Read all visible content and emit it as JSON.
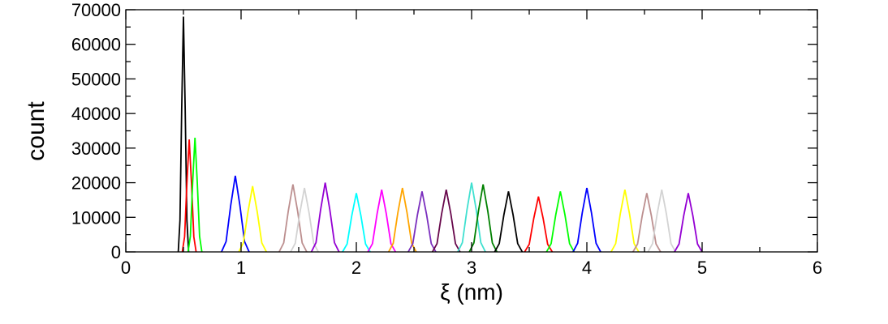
{
  "chart_data": {
    "type": "line",
    "xlabel": "ξ (nm)",
    "ylabel": "count",
    "xlim": [
      0,
      6
    ],
    "xticks": [
      0,
      1,
      2,
      3,
      4,
      5,
      6
    ],
    "xminorticks": [
      0.5,
      1.5,
      2.5,
      3.5,
      4.5,
      5.5
    ],
    "ylim": [
      0,
      70000
    ],
    "yticks": [
      0,
      10000,
      20000,
      30000,
      40000,
      50000,
      60000,
      70000
    ],
    "yminorticks": [
      5000,
      15000,
      25000,
      35000,
      45000,
      55000,
      65000
    ],
    "series": [
      {
        "color": "#000000",
        "x": [
          0.455,
          0.47,
          0.485,
          0.5,
          0.515,
          0.53,
          0.545
        ],
        "values": [
          0,
          9200,
          41500,
          68000,
          41500,
          9200,
          0
        ]
      },
      {
        "color": "#ff0000",
        "x": [
          0.49,
          0.51,
          0.53,
          0.55,
          0.57,
          0.59,
          0.61
        ],
        "values": [
          0,
          4400,
          19800,
          32500,
          19800,
          4400,
          0
        ]
      },
      {
        "color": "#00ff00",
        "x": [
          0.54,
          0.56,
          0.58,
          0.6,
          0.62,
          0.64,
          0.66
        ],
        "values": [
          0,
          4500,
          20100,
          33000,
          20100,
          4500,
          0
        ]
      },
      {
        "color": "#0000ff",
        "x": [
          0.83,
          0.87,
          0.91,
          0.95,
          0.99,
          1.03,
          1.07
        ],
        "values": [
          0,
          3000,
          13400,
          22000,
          13400,
          3000,
          0
        ]
      },
      {
        "color": "#ffff00",
        "x": [
          0.98,
          1.02,
          1.06,
          1.1,
          1.14,
          1.18,
          1.22
        ],
        "values": [
          0,
          2600,
          11600,
          19000,
          11600,
          2600,
          0
        ]
      },
      {
        "color": "#bc8f8f",
        "x": [
          1.33,
          1.37,
          1.41,
          1.45,
          1.49,
          1.53,
          1.57
        ],
        "values": [
          0,
          2600,
          11900,
          19500,
          11900,
          2600,
          0
        ]
      },
      {
        "color": "#d3d3d3",
        "x": [
          1.43,
          1.47,
          1.51,
          1.55,
          1.59,
          1.63,
          1.67
        ],
        "values": [
          0,
          2500,
          11300,
          18500,
          11300,
          2500,
          0
        ]
      },
      {
        "color": "#9400d3",
        "x": [
          1.61,
          1.65,
          1.69,
          1.73,
          1.77,
          1.81,
          1.85
        ],
        "values": [
          0,
          2700,
          12200,
          20000,
          12200,
          2700,
          0
        ]
      },
      {
        "color": "#00ffff",
        "x": [
          1.88,
          1.92,
          1.96,
          2.0,
          2.04,
          2.08,
          2.12
        ],
        "values": [
          0,
          2300,
          10400,
          17000,
          10400,
          2300,
          0
        ]
      },
      {
        "color": "#ff00ff",
        "x": [
          2.1,
          2.14,
          2.18,
          2.22,
          2.26,
          2.3,
          2.34
        ],
        "values": [
          0,
          2400,
          11000,
          18000,
          11000,
          2400,
          0
        ]
      },
      {
        "color": "#ffa500",
        "x": [
          2.28,
          2.32,
          2.36,
          2.4,
          2.44,
          2.48,
          2.52
        ],
        "values": [
          0,
          2500,
          11300,
          18500,
          11300,
          2500,
          0
        ]
      },
      {
        "color": "#7b2fbe",
        "x": [
          2.45,
          2.49,
          2.53,
          2.57,
          2.61,
          2.65,
          2.69
        ],
        "values": [
          0,
          2400,
          10700,
          17500,
          10700,
          2400,
          0
        ]
      },
      {
        "color": "#67074b",
        "x": [
          2.66,
          2.7,
          2.74,
          2.78,
          2.82,
          2.86,
          2.9
        ],
        "values": [
          0,
          2400,
          11000,
          18000,
          11000,
          2400,
          0
        ]
      },
      {
        "color": "#40e0d0",
        "x": [
          2.88,
          2.92,
          2.96,
          3.0,
          3.04,
          3.08,
          3.12
        ],
        "values": [
          0,
          2700,
          12200,
          20000,
          12200,
          2700,
          0
        ]
      },
      {
        "color": "#008000",
        "x": [
          2.98,
          3.02,
          3.06,
          3.1,
          3.14,
          3.18,
          3.22
        ],
        "values": [
          0,
          2600,
          11900,
          19500,
          11900,
          2600,
          0
        ]
      },
      {
        "color": "#000000",
        "x": [
          3.2,
          3.24,
          3.28,
          3.32,
          3.36,
          3.4,
          3.44
        ],
        "values": [
          0,
          2400,
          10700,
          17500,
          10700,
          2400,
          0
        ]
      },
      {
        "color": "#ff0000",
        "x": [
          3.46,
          3.5,
          3.54,
          3.58,
          3.62,
          3.66,
          3.7
        ],
        "values": [
          0,
          2200,
          9800,
          16000,
          9800,
          2200,
          0
        ]
      },
      {
        "color": "#00ff00",
        "x": [
          3.65,
          3.69,
          3.73,
          3.77,
          3.81,
          3.85,
          3.89
        ],
        "values": [
          0,
          2400,
          10700,
          17500,
          10700,
          2400,
          0
        ]
      },
      {
        "color": "#0000ff",
        "x": [
          3.88,
          3.92,
          3.96,
          4.0,
          4.04,
          4.08,
          4.12
        ],
        "values": [
          0,
          2500,
          11300,
          18500,
          11300,
          2500,
          0
        ]
      },
      {
        "color": "#ffff00",
        "x": [
          4.21,
          4.25,
          4.29,
          4.33,
          4.37,
          4.41,
          4.45
        ],
        "values": [
          0,
          2400,
          11000,
          18000,
          11000,
          2400,
          0
        ]
      },
      {
        "color": "#bc8f8f",
        "x": [
          4.4,
          4.44,
          4.48,
          4.52,
          4.56,
          4.6,
          4.64
        ],
        "values": [
          0,
          2300,
          10400,
          17000,
          10400,
          2300,
          0
        ]
      },
      {
        "color": "#d3d3d3",
        "x": [
          4.53,
          4.57,
          4.61,
          4.65,
          4.69,
          4.73,
          4.77
        ],
        "values": [
          0,
          2400,
          11000,
          18000,
          11000,
          2400,
          0
        ]
      },
      {
        "color": "#9400d3",
        "x": [
          4.76,
          4.8,
          4.84,
          4.88,
          4.92,
          4.96,
          5.0
        ],
        "values": [
          0,
          2300,
          10400,
          17000,
          10400,
          2300,
          0
        ]
      }
    ]
  }
}
